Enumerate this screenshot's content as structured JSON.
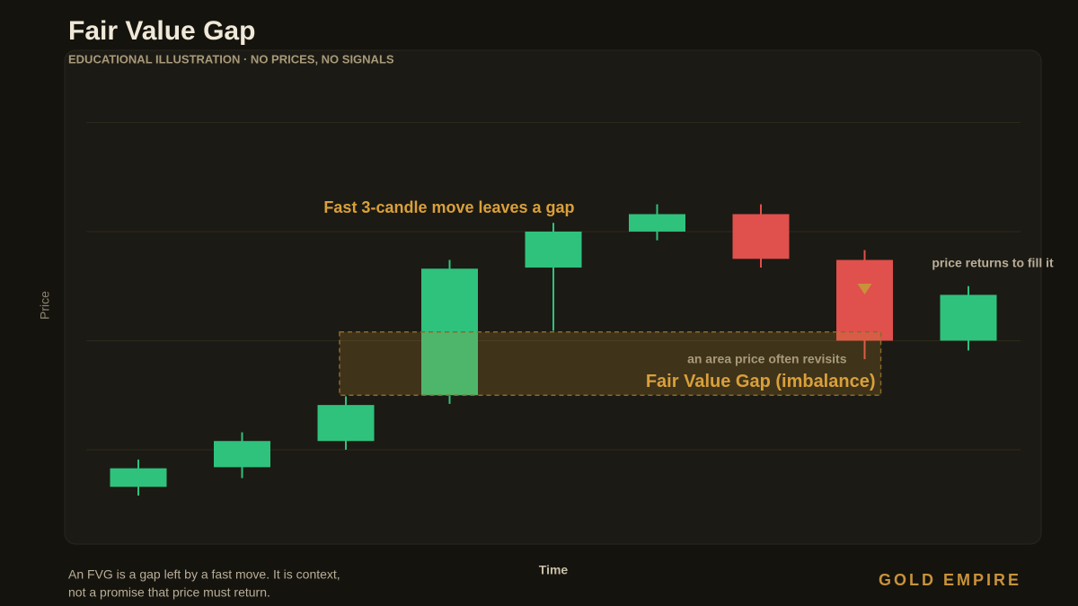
{
  "chart_data": {
    "type": "candlestick",
    "title": "Fair Value Gap",
    "subtitle": "EDUCATIONAL ILLUSTRATION · NO PRICES, NO SIGNALS",
    "xlabel": "Time",
    "ylabel": "Price",
    "ylim": [
      0.3,
      4.3
    ],
    "yticks": [
      1,
      2,
      3,
      4
    ],
    "grid": true,
    "up_color": "#2fc27c",
    "down_color": "#e0504c",
    "open": [
      0.66,
      0.84,
      1.08,
      1.5,
      2.67,
      3.0,
      3.16,
      2.74,
      2.0
    ],
    "high": [
      0.91,
      1.16,
      1.49,
      2.74,
      3.08,
      3.25,
      3.25,
      2.83,
      2.5
    ],
    "low": [
      0.58,
      0.74,
      1.0,
      1.42,
      2.09,
      2.92,
      2.67,
      1.83,
      1.91
    ],
    "close": [
      0.83,
      1.08,
      1.41,
      2.66,
      3.0,
      3.16,
      2.75,
      2.0,
      2.42
    ],
    "zone": {
      "low": 1.5,
      "high": 2.08,
      "label": "Fair Value Gap (imbalance)",
      "sublabel": "an area price often revisits"
    },
    "annotations": [
      "Fast 3-candle move leaves a gap",
      "price returns to fill it"
    ]
  },
  "footer": {
    "note": [
      "An FVG is a gap left by a fast move. It is context,",
      "not a promise that price must return."
    ],
    "brand": "GOLD EMPIRE"
  }
}
